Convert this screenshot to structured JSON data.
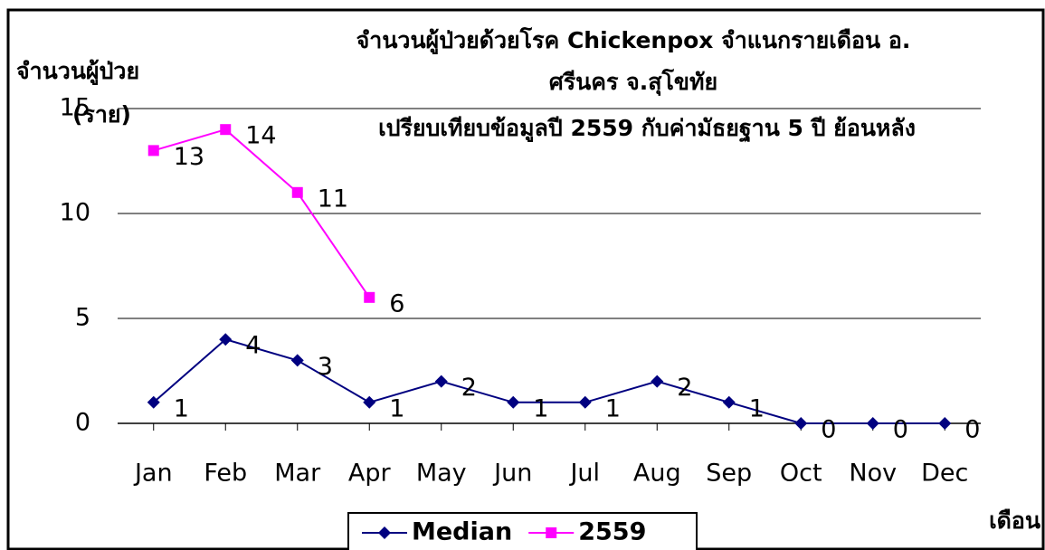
{
  "chart_data": {
    "type": "line",
    "title": "จำนวนผู้ป่วยด้วยโรค  Chickenpox  จำแนกรายเดือน   อ.",
    "title_line2": "ศรีนคร จ.สุโขทัย",
    "subtitle": "เปรียบเทียบข้อมูลปี  2559  กับค่ามัธยฐาน 5 ปี ย้อนหลัง",
    "y_label": [
      "จำนวนผู้ป่วย",
      "(ราย)"
    ],
    "x_label": "เดือน",
    "categories": [
      "Jan",
      "Feb",
      "Mar",
      "Apr",
      "May",
      "Jun",
      "Jul",
      "Aug",
      "Sep",
      "Oct",
      "Nov",
      "Dec"
    ],
    "series": [
      {
        "name": "Median",
        "color": "#000080",
        "marker": "diamond",
        "values": [
          1,
          4,
          3,
          1,
          2,
          1,
          1,
          2,
          1,
          0,
          0,
          0
        ]
      },
      {
        "name": "2559",
        "color": "#ff00ff",
        "marker": "square",
        "values": [
          13,
          14,
          11,
          6,
          null,
          null,
          null,
          null,
          null,
          null,
          null,
          null
        ]
      }
    ],
    "ylim": [
      0,
      15
    ],
    "yticks": [
      0,
      5,
      10,
      15
    ],
    "grid": true,
    "legend": "bottom"
  }
}
